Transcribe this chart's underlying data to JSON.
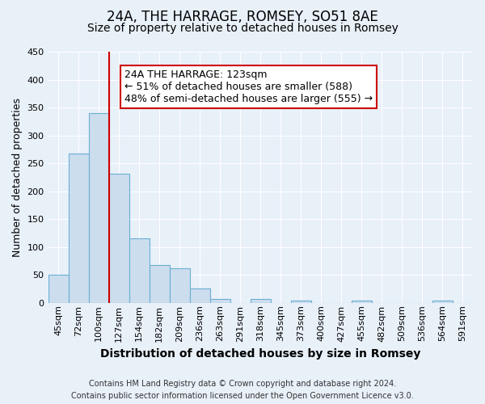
{
  "title": "24A, THE HARRAGE, ROMSEY, SO51 8AE",
  "subtitle": "Size of property relative to detached houses in Romsey",
  "xlabel": "Distribution of detached houses by size in Romsey",
  "ylabel": "Number of detached properties",
  "bin_labels": [
    "45sqm",
    "72sqm",
    "100sqm",
    "127sqm",
    "154sqm",
    "182sqm",
    "209sqm",
    "236sqm",
    "263sqm",
    "291sqm",
    "318sqm",
    "345sqm",
    "373sqm",
    "400sqm",
    "427sqm",
    "455sqm",
    "482sqm",
    "509sqm",
    "536sqm",
    "564sqm",
    "591sqm"
  ],
  "bar_heights": [
    50,
    267,
    340,
    232,
    115,
    67,
    62,
    25,
    7,
    0,
    7,
    0,
    4,
    0,
    0,
    4,
    0,
    0,
    0,
    4,
    0
  ],
  "bar_color": "#ccdded",
  "bar_edge_color": "#6aafd6",
  "vline_color": "#cc0000",
  "ylim": [
    0,
    450
  ],
  "yticks": [
    0,
    50,
    100,
    150,
    200,
    250,
    300,
    350,
    400,
    450
  ],
  "annotation_text": "24A THE HARRAGE: 123sqm\n← 51% of detached houses are smaller (588)\n48% of semi-detached houses are larger (555) →",
  "annotation_box_facecolor": "#ffffff",
  "annotation_box_edgecolor": "#cc0000",
  "footer_line1": "Contains HM Land Registry data © Crown copyright and database right 2024.",
  "footer_line2": "Contains public sector information licensed under the Open Government Licence v3.0.",
  "background_color": "#e8f0f8",
  "grid_color": "#ffffff",
  "title_fontsize": 12,
  "subtitle_fontsize": 10,
  "ylabel_fontsize": 9,
  "xlabel_fontsize": 10,
  "tick_fontsize": 8,
  "annotation_fontsize": 9,
  "footer_fontsize": 7
}
